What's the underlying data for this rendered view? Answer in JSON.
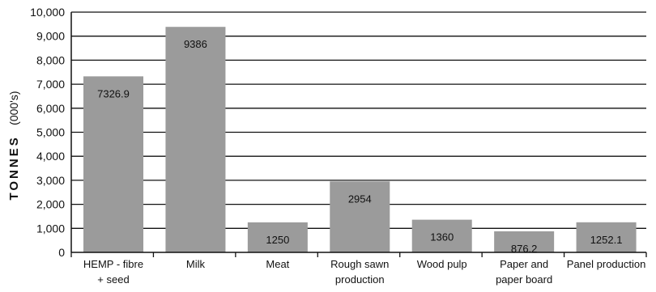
{
  "chart_data": {
    "type": "bar",
    "ylabel": "TONNES",
    "ylabel_unit": "(000's)",
    "ylim": [
      0,
      10000
    ],
    "yticks": [
      0,
      1000,
      2000,
      3000,
      4000,
      5000,
      6000,
      7000,
      8000,
      9000,
      10000
    ],
    "ytick_labels": [
      "0",
      "1,000",
      "2,000",
      "3,000",
      "4,000",
      "5,000",
      "6,000",
      "7,000",
      "8,000",
      "9,000",
      "10,000"
    ],
    "grid": true,
    "bar_color": "#9b9b9b",
    "categories": [
      [
        "HEMP - fibre",
        "+ seed"
      ],
      [
        "Milk"
      ],
      [
        "Meat"
      ],
      [
        "Rough sawn",
        "production"
      ],
      [
        "Wood pulp"
      ],
      [
        "Paper and",
        "paper board"
      ],
      [
        "Panel production"
      ]
    ],
    "values": [
      7326.9,
      9386,
      1250,
      2954,
      1360,
      876.2,
      1252.1
    ],
    "value_labels": [
      "7326.9",
      "9386",
      "1250",
      "2954",
      "1360",
      "876.2",
      "1252.1"
    ]
  }
}
